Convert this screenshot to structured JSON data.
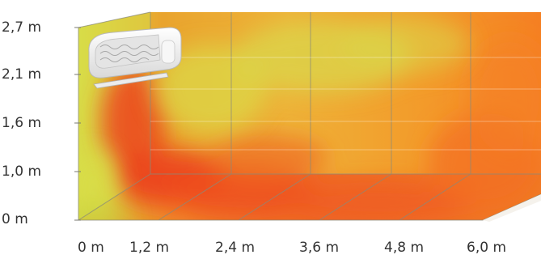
{
  "y_axis": {
    "labels": [
      "2,7 m",
      "2,1 m",
      "1,6 m",
      "1,0 m",
      "0 m"
    ]
  },
  "x_axis": {
    "labels": [
      "0 m",
      "1,2 m",
      "2,4 m",
      "3,6 m",
      "4,8 m",
      "6,0 m"
    ]
  },
  "colors": {
    "warm_red": "#ee4e22",
    "orange": "#f58a28",
    "yellow_green": "#d6d84a",
    "grid_line": "#8a8a7a"
  },
  "icons": {
    "air_conditioner": "air-conditioner-icon"
  }
}
